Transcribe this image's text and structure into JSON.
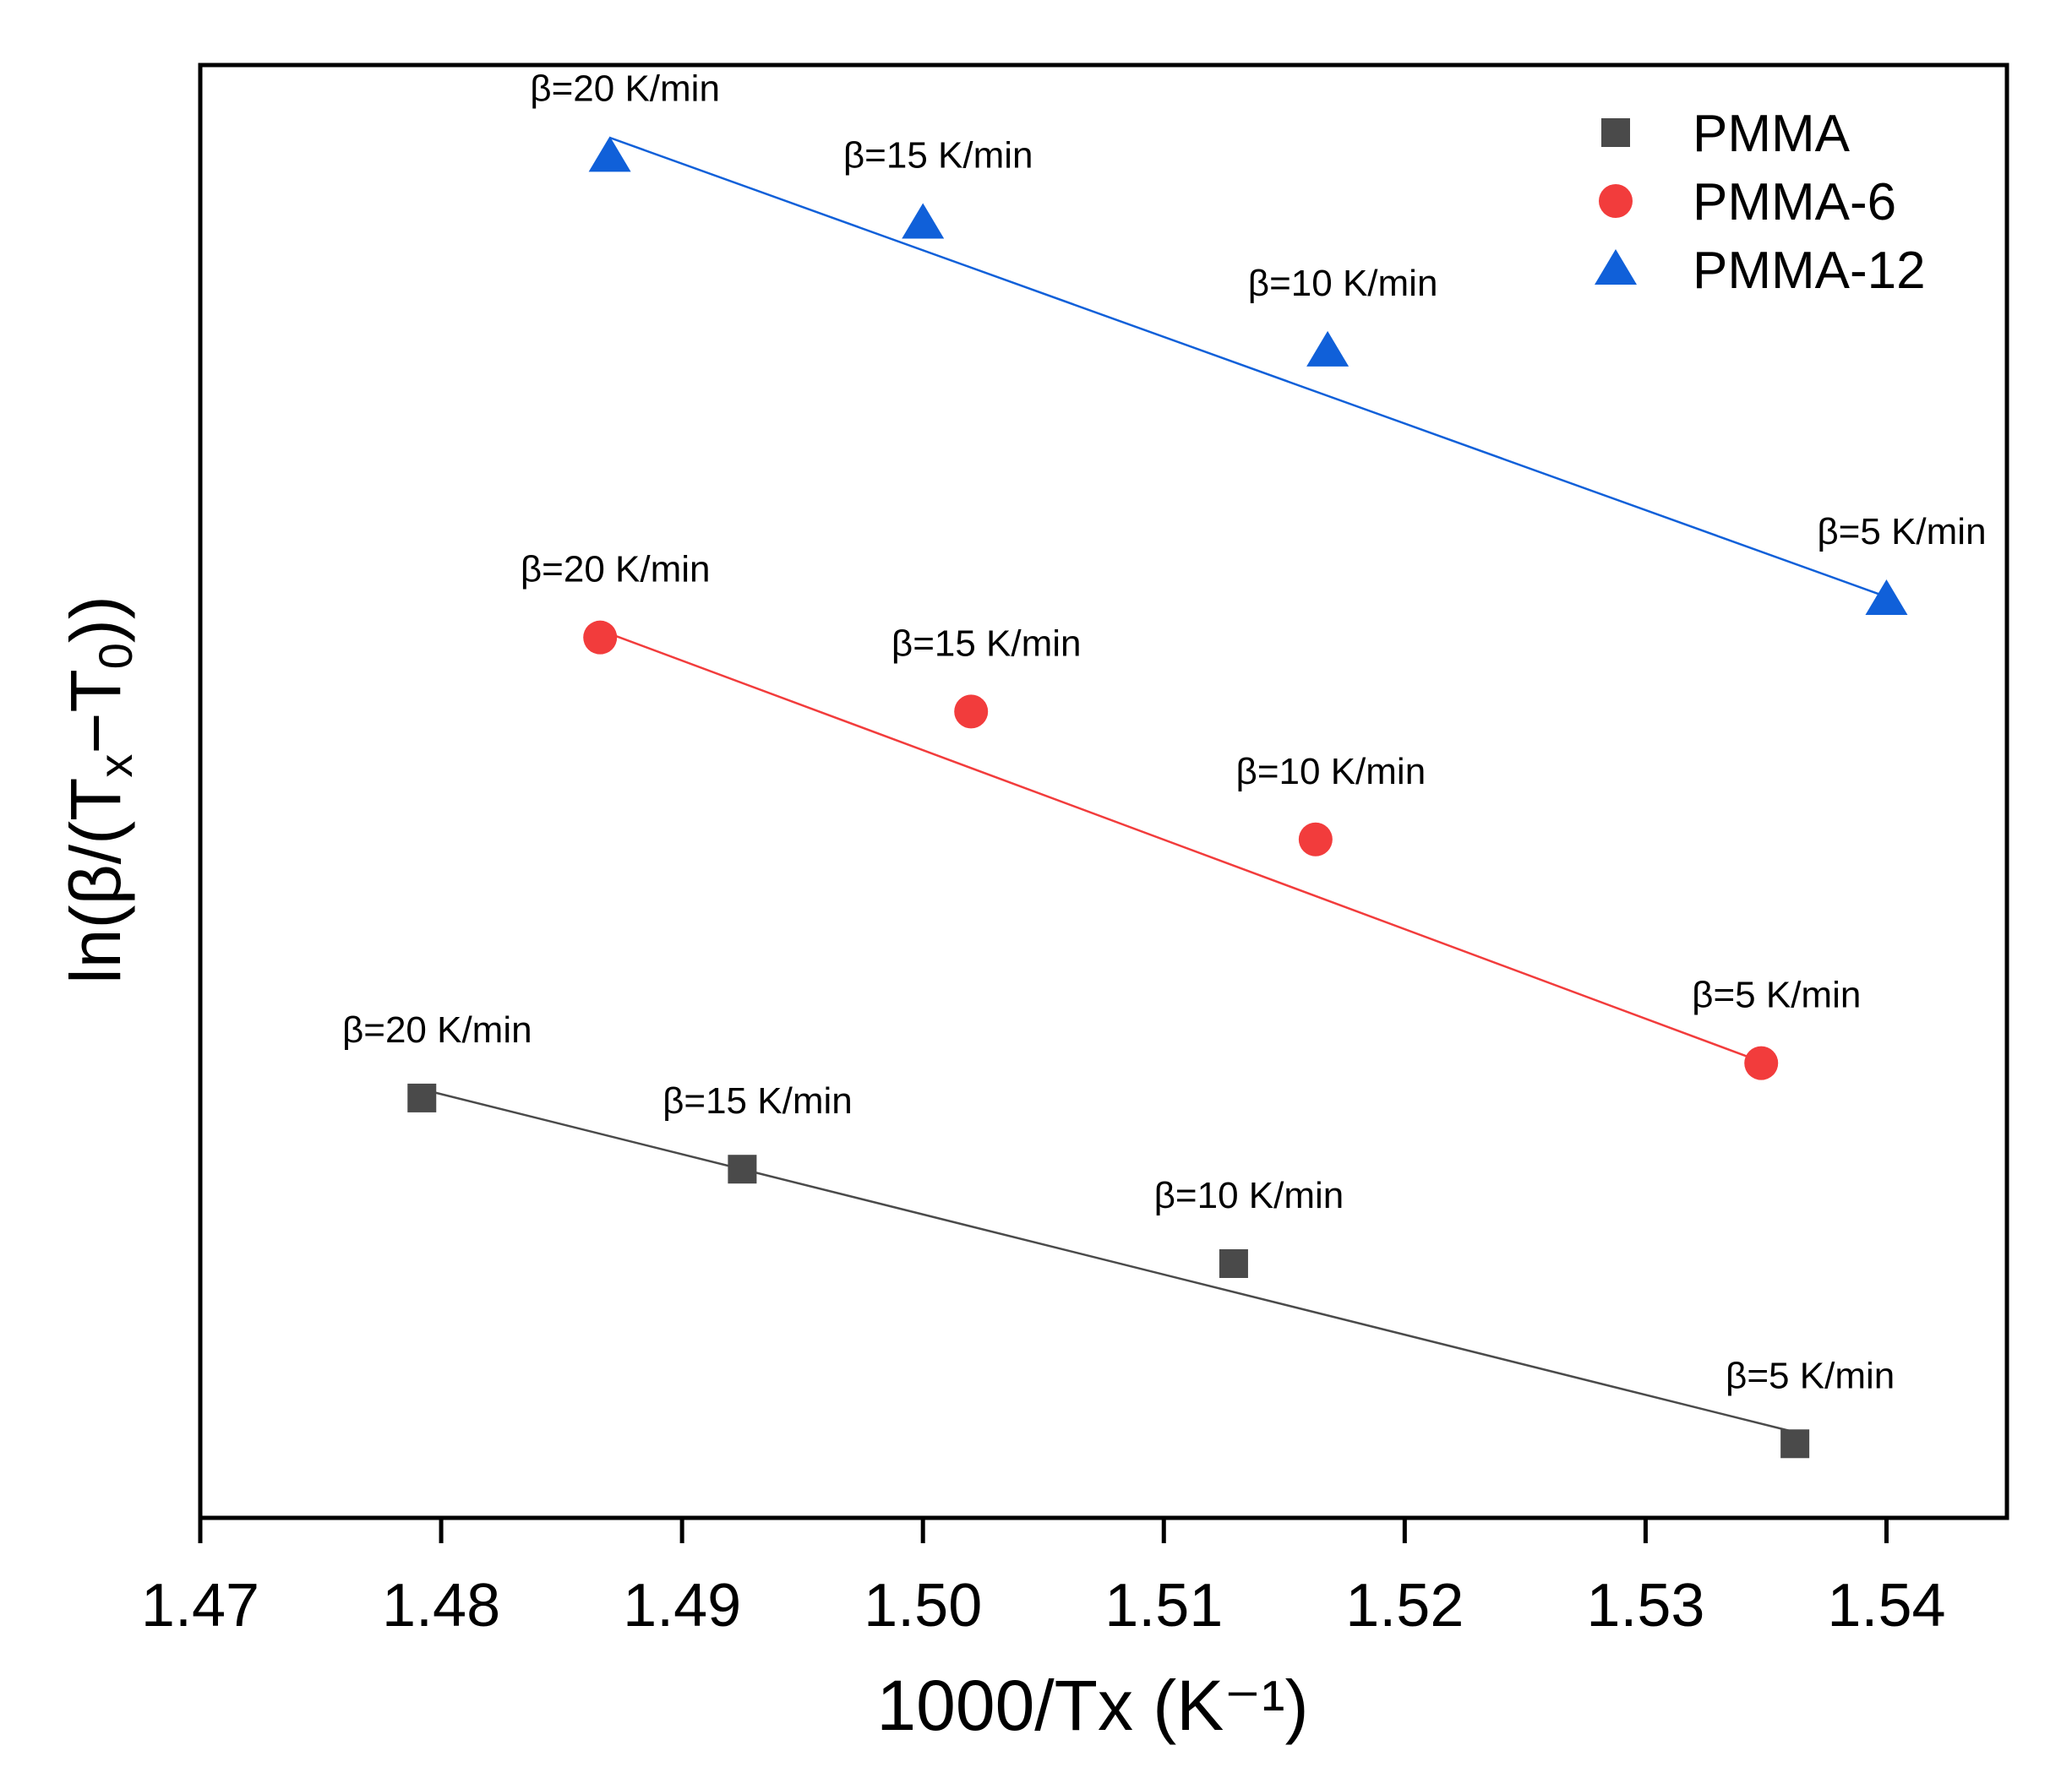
{
  "chart_data": {
    "type": "scatter",
    "title": "",
    "xlabel": "1000/Tx (K⁻¹)",
    "ylabel": {
      "prefix": "ln(β/(T",
      "sub1": "x",
      "middle": "−T",
      "sub2": "0",
      "suffix": "))"
    },
    "xlim": [
      1.47,
      1.545
    ],
    "ylim": [
      0,
      100
    ],
    "y_ticks_shown": false,
    "x_ticks": [
      1.47,
      1.48,
      1.49,
      1.5,
      1.51,
      1.52,
      1.53,
      1.54
    ],
    "x_tick_labels": [
      "1.47",
      "1.48",
      "1.49",
      "1.50",
      "1.51",
      "1.52",
      "1.53",
      "1.54"
    ],
    "grid": false,
    "legend_position": "top-right",
    "series": [
      {
        "name": "PMMA",
        "marker": "square",
        "color": "#4a4a4a",
        "x": [
          1.4792,
          1.4925,
          1.5129,
          1.5362
        ],
        "y": [
          28.9,
          24.0,
          17.5,
          5.1
        ],
        "fit": {
          "x": [
            1.4792,
            1.5362
          ],
          "y": [
            29.5,
            5.9
          ]
        },
        "labels": [
          "β=20 K/min",
          "β=15 K/min",
          "β=10 K/min",
          "β=5 K/min"
        ]
      },
      {
        "name": "PMMA-6",
        "marker": "circle",
        "color": "#f23c3c",
        "x": [
          1.4866,
          1.502,
          1.5163,
          1.5348
        ],
        "y": [
          60.6,
          55.5,
          46.7,
          31.3
        ],
        "fit": {
          "x": [
            1.4866,
            1.5348
          ],
          "y": [
            61.1,
            31.4
          ]
        },
        "labels": [
          "β=20 K/min",
          "β=15 K/min",
          "β=10 K/min",
          "β=5 K/min"
        ]
      },
      {
        "name": "PMMA-12",
        "marker": "triangle",
        "color": "#1060d9",
        "x": [
          1.487,
          1.5,
          1.5168,
          1.54
        ],
        "y": [
          93.7,
          89.1,
          80.3,
          63.2
        ],
        "fit": {
          "x": [
            1.487,
            1.54
          ],
          "y": [
            95.0,
            63.4
          ]
        },
        "labels": [
          "β=20 K/min",
          "β=15 K/min",
          "β=10 K/min",
          "β=5 K/min"
        ]
      }
    ]
  }
}
